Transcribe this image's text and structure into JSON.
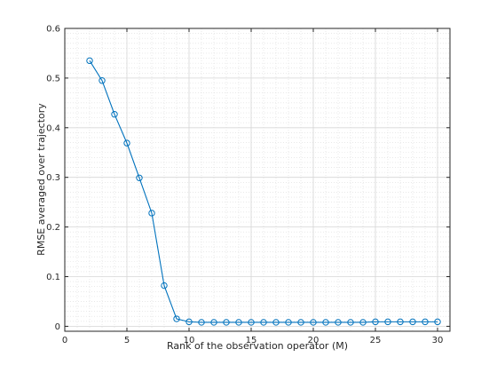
{
  "chart_data": {
    "type": "line",
    "title": "",
    "xlabel": "Rank of the observation operator (M)",
    "ylabel": "RMSE averaged over trajectory",
    "xlim": [
      0,
      31
    ],
    "ylim": [
      -0.01,
      0.6
    ],
    "x_ticks": [
      0,
      5,
      10,
      15,
      20,
      25,
      30
    ],
    "y_ticks": [
      0,
      0.1,
      0.2,
      0.3,
      0.4,
      0.5,
      0.6
    ],
    "x_tick_labels": [
      "0",
      "5",
      "10",
      "15",
      "20",
      "25",
      "30"
    ],
    "y_tick_labels": [
      "0",
      "0.1",
      "0.2",
      "0.3",
      "0.4",
      "0.5",
      "0.6"
    ],
    "grid": "major solid + minor dotted",
    "series": [
      {
        "color": "#0072bd",
        "marker": "circle",
        "x": [
          2,
          3,
          4,
          5,
          6,
          7,
          8,
          9,
          10,
          11,
          12,
          13,
          14,
          15,
          16,
          17,
          18,
          19,
          20,
          21,
          22,
          23,
          24,
          25,
          26,
          27,
          28,
          29,
          30
        ],
        "y": [
          0.535,
          0.495,
          0.427,
          0.369,
          0.299,
          0.228,
          0.082,
          0.015,
          0.009,
          0.008,
          0.008,
          0.008,
          0.008,
          0.008,
          0.008,
          0.008,
          0.008,
          0.008,
          0.008,
          0.008,
          0.008,
          0.008,
          0.008,
          0.009,
          0.009,
          0.009,
          0.009,
          0.009,
          0.009
        ]
      }
    ]
  }
}
